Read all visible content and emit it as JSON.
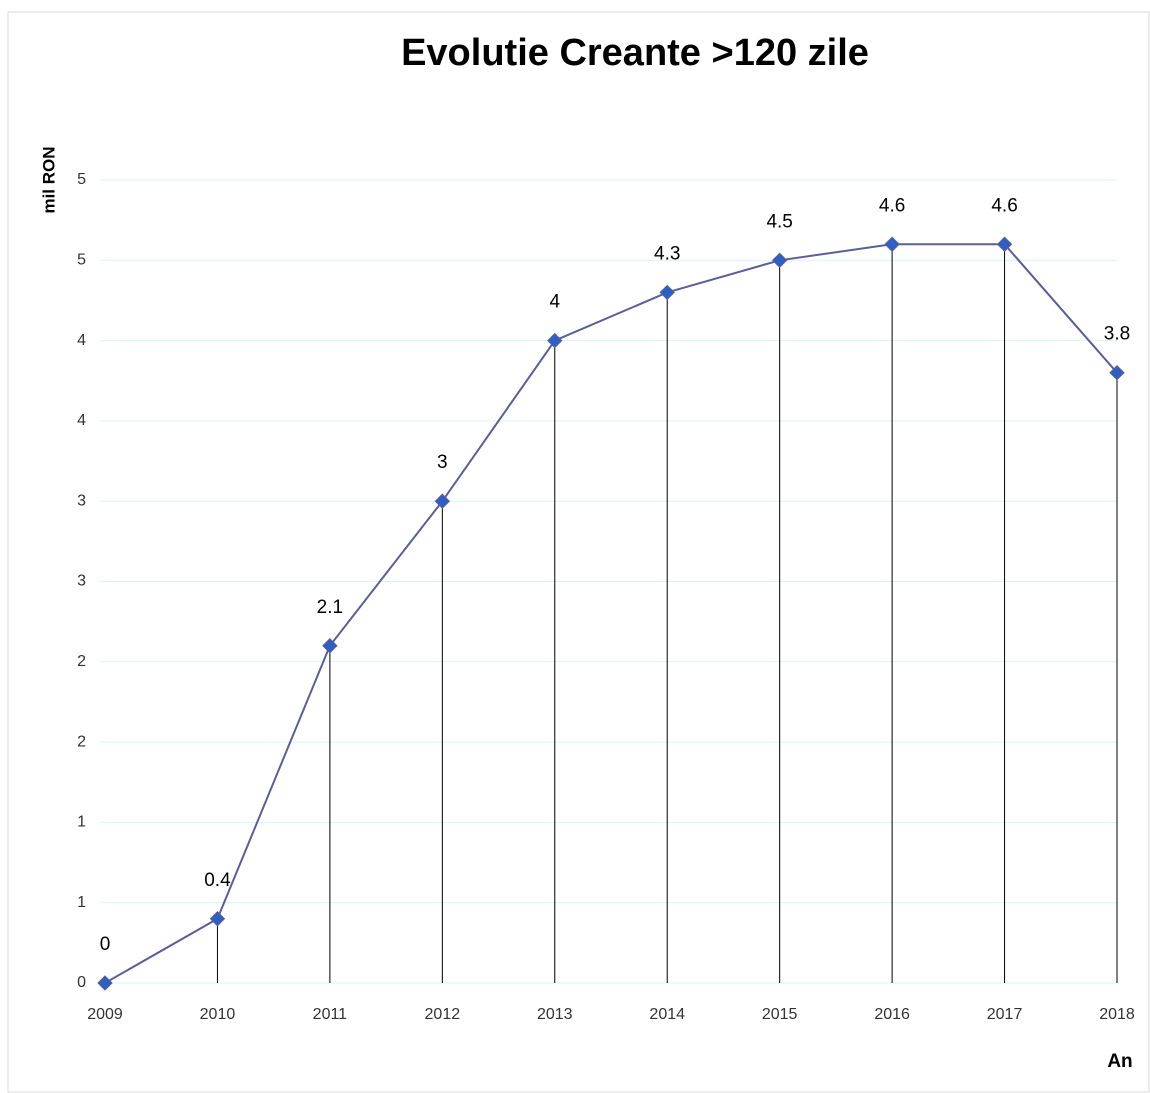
{
  "chart_data": {
    "type": "line",
    "title": "Evolutie Creante >120 zile",
    "y_label": "mil RON",
    "x_label": "An",
    "categories": [
      "2009",
      "2010",
      "2011",
      "2012",
      "2013",
      "2014",
      "2015",
      "2016",
      "2017",
      "2018"
    ],
    "series": [
      {
        "name": "Creante >120 zile",
        "color": "#5a5f99",
        "marker_color": "#2e5fc4",
        "values": [
          0,
          0.4,
          2.1,
          3,
          4,
          4.3,
          4.5,
          4.6,
          4.6,
          3.8
        ]
      }
    ],
    "ylim": [
      0,
      5
    ],
    "yticks": [
      0,
      {
        "value": 0.5,
        "label": "1"
      },
      1,
      {
        "value": 1.5,
        "label": "2"
      },
      2,
      {
        "value": 2.5,
        "label": "3"
      },
      3,
      {
        "value": 3.5,
        "label": "4"
      },
      4,
      {
        "value": 4.5,
        "label": "5"
      },
      5
    ],
    "grid": true,
    "drop_lines": true,
    "data_labels": true
  }
}
